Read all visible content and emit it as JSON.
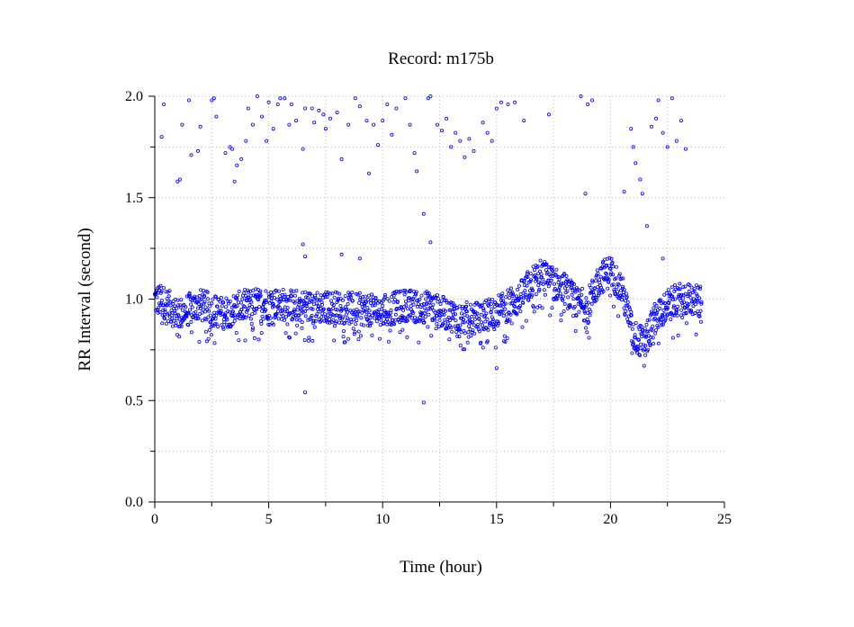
{
  "chart_data": {
    "type": "scatter",
    "title": "Record:  m175b",
    "xlabel": "Time (hour)",
    "ylabel": "RR Interval (second)",
    "xlim": [
      0,
      25
    ],
    "ylim": [
      0.0,
      2.0
    ],
    "x_ticks": [
      0,
      5,
      10,
      15,
      20,
      25
    ],
    "x_tick_labels": [
      "0",
      "5",
      "10",
      "15",
      "20",
      "25"
    ],
    "x_minor_ticks": [
      2.5,
      7.5,
      12.5,
      17.5,
      22.5
    ],
    "y_ticks": [
      0.0,
      0.5,
      1.0,
      1.5,
      2.0
    ],
    "y_tick_labels": [
      "0.0",
      "0.5",
      "1.0",
      "1.5",
      "2.0"
    ],
    "y_minor_ticks": [
      0.25,
      0.75,
      1.25,
      1.75
    ],
    "grid": true,
    "marker_color": "#0000ff",
    "series": [
      {
        "x_range": [
          0.0,
          24.0
        ],
        "trend": [
          [
            0.0,
            1.0
          ],
          [
            0.5,
            0.98
          ],
          [
            1.0,
            0.92
          ],
          [
            1.5,
            0.95
          ],
          [
            2.0,
            0.97
          ],
          [
            2.5,
            0.95
          ],
          [
            3.0,
            0.93
          ],
          [
            3.5,
            0.95
          ],
          [
            4.0,
            0.97
          ],
          [
            5.0,
            0.98
          ],
          [
            6.0,
            0.97
          ],
          [
            7.0,
            0.96
          ],
          [
            8.0,
            0.96
          ],
          [
            9.0,
            0.95
          ],
          [
            10.0,
            0.94
          ],
          [
            11.0,
            0.97
          ],
          [
            12.0,
            0.96
          ],
          [
            13.0,
            0.92
          ],
          [
            14.0,
            0.9
          ],
          [
            15.0,
            0.94
          ],
          [
            16.0,
            1.0
          ],
          [
            16.5,
            1.08
          ],
          [
            17.0,
            1.12
          ],
          [
            17.5,
            1.08
          ],
          [
            18.0,
            1.05
          ],
          [
            18.5,
            0.98
          ],
          [
            19.0,
            0.97
          ],
          [
            19.5,
            1.1
          ],
          [
            20.0,
            1.14
          ],
          [
            20.5,
            1.05
          ],
          [
            21.0,
            0.82
          ],
          [
            21.5,
            0.78
          ],
          [
            22.0,
            0.92
          ],
          [
            22.5,
            0.97
          ],
          [
            23.0,
            1.0
          ],
          [
            23.5,
            1.0
          ],
          [
            24.0,
            0.98
          ]
        ],
        "outliers": [
          [
            0.3,
            1.8
          ],
          [
            0.4,
            1.96
          ],
          [
            1.0,
            1.58
          ],
          [
            1.1,
            1.59
          ],
          [
            1.2,
            1.86
          ],
          [
            1.5,
            1.98
          ],
          [
            1.6,
            1.71
          ],
          [
            1.9,
            1.73
          ],
          [
            2.0,
            1.85
          ],
          [
            2.5,
            1.98
          ],
          [
            2.6,
            1.99
          ],
          [
            2.7,
            1.9
          ],
          [
            3.1,
            1.72
          ],
          [
            3.3,
            1.75
          ],
          [
            3.4,
            1.74
          ],
          [
            3.5,
            1.58
          ],
          [
            3.6,
            1.66
          ],
          [
            3.8,
            1.69
          ],
          [
            4.0,
            1.78
          ],
          [
            4.1,
            1.94
          ],
          [
            4.3,
            1.86
          ],
          [
            4.5,
            2.0
          ],
          [
            4.7,
            1.9
          ],
          [
            4.9,
            1.78
          ],
          [
            5.0,
            1.97
          ],
          [
            5.2,
            1.84
          ],
          [
            5.4,
            1.96
          ],
          [
            5.5,
            1.99
          ],
          [
            5.7,
            1.99
          ],
          [
            5.9,
            1.86
          ],
          [
            6.0,
            1.96
          ],
          [
            6.2,
            1.88
          ],
          [
            6.5,
            1.74
          ],
          [
            6.6,
            1.94
          ],
          [
            6.9,
            1.94
          ],
          [
            7.0,
            1.87
          ],
          [
            7.2,
            1.93
          ],
          [
            7.4,
            1.91
          ],
          [
            7.5,
            1.84
          ],
          [
            7.7,
            1.89
          ],
          [
            8.0,
            1.92
          ],
          [
            8.2,
            1.69
          ],
          [
            8.5,
            1.86
          ],
          [
            8.8,
            1.99
          ],
          [
            9.0,
            1.95
          ],
          [
            9.3,
            1.88
          ],
          [
            9.4,
            1.62
          ],
          [
            9.6,
            1.86
          ],
          [
            9.8,
            1.76
          ],
          [
            10.0,
            1.88
          ],
          [
            10.2,
            1.96
          ],
          [
            10.4,
            1.81
          ],
          [
            10.6,
            1.94
          ],
          [
            11.0,
            1.99
          ],
          [
            11.2,
            1.86
          ],
          [
            11.4,
            1.72
          ],
          [
            11.5,
            1.63
          ],
          [
            11.8,
            1.42
          ],
          [
            12.0,
            1.99
          ],
          [
            12.1,
            2.0
          ],
          [
            12.4,
            1.86
          ],
          [
            12.6,
            1.83
          ],
          [
            12.8,
            1.89
          ],
          [
            13.0,
            1.75
          ],
          [
            13.2,
            1.82
          ],
          [
            13.4,
            1.78
          ],
          [
            13.6,
            1.7
          ],
          [
            13.8,
            1.79
          ],
          [
            14.0,
            1.73
          ],
          [
            14.4,
            1.87
          ],
          [
            14.6,
            1.82
          ],
          [
            14.8,
            1.78
          ],
          [
            15.0,
            1.94
          ],
          [
            15.2,
            1.97
          ],
          [
            15.5,
            1.96
          ],
          [
            15.8,
            1.97
          ],
          [
            16.2,
            1.88
          ],
          [
            17.3,
            1.91
          ],
          [
            18.7,
            2.0
          ],
          [
            18.9,
            1.52
          ],
          [
            19.0,
            1.96
          ],
          [
            19.2,
            1.98
          ],
          [
            20.6,
            1.53
          ],
          [
            20.9,
            1.84
          ],
          [
            21.0,
            1.75
          ],
          [
            21.1,
            1.67
          ],
          [
            21.3,
            1.59
          ],
          [
            21.4,
            1.52
          ],
          [
            21.6,
            1.36
          ],
          [
            21.8,
            1.85
          ],
          [
            22.0,
            1.89
          ],
          [
            22.1,
            1.98
          ],
          [
            22.3,
            1.82
          ],
          [
            22.5,
            1.75
          ],
          [
            22.7,
            1.99
          ],
          [
            22.9,
            1.78
          ],
          [
            23.1,
            1.88
          ],
          [
            23.3,
            1.74
          ],
          [
            6.5,
            1.27
          ],
          [
            6.6,
            1.21
          ],
          [
            8.2,
            1.22
          ],
          [
            9.0,
            1.2
          ],
          [
            12.1,
            1.28
          ],
          [
            6.6,
            0.54
          ],
          [
            11.8,
            0.49
          ],
          [
            15.0,
            0.66
          ],
          [
            22.3,
            1.2
          ]
        ]
      }
    ]
  }
}
